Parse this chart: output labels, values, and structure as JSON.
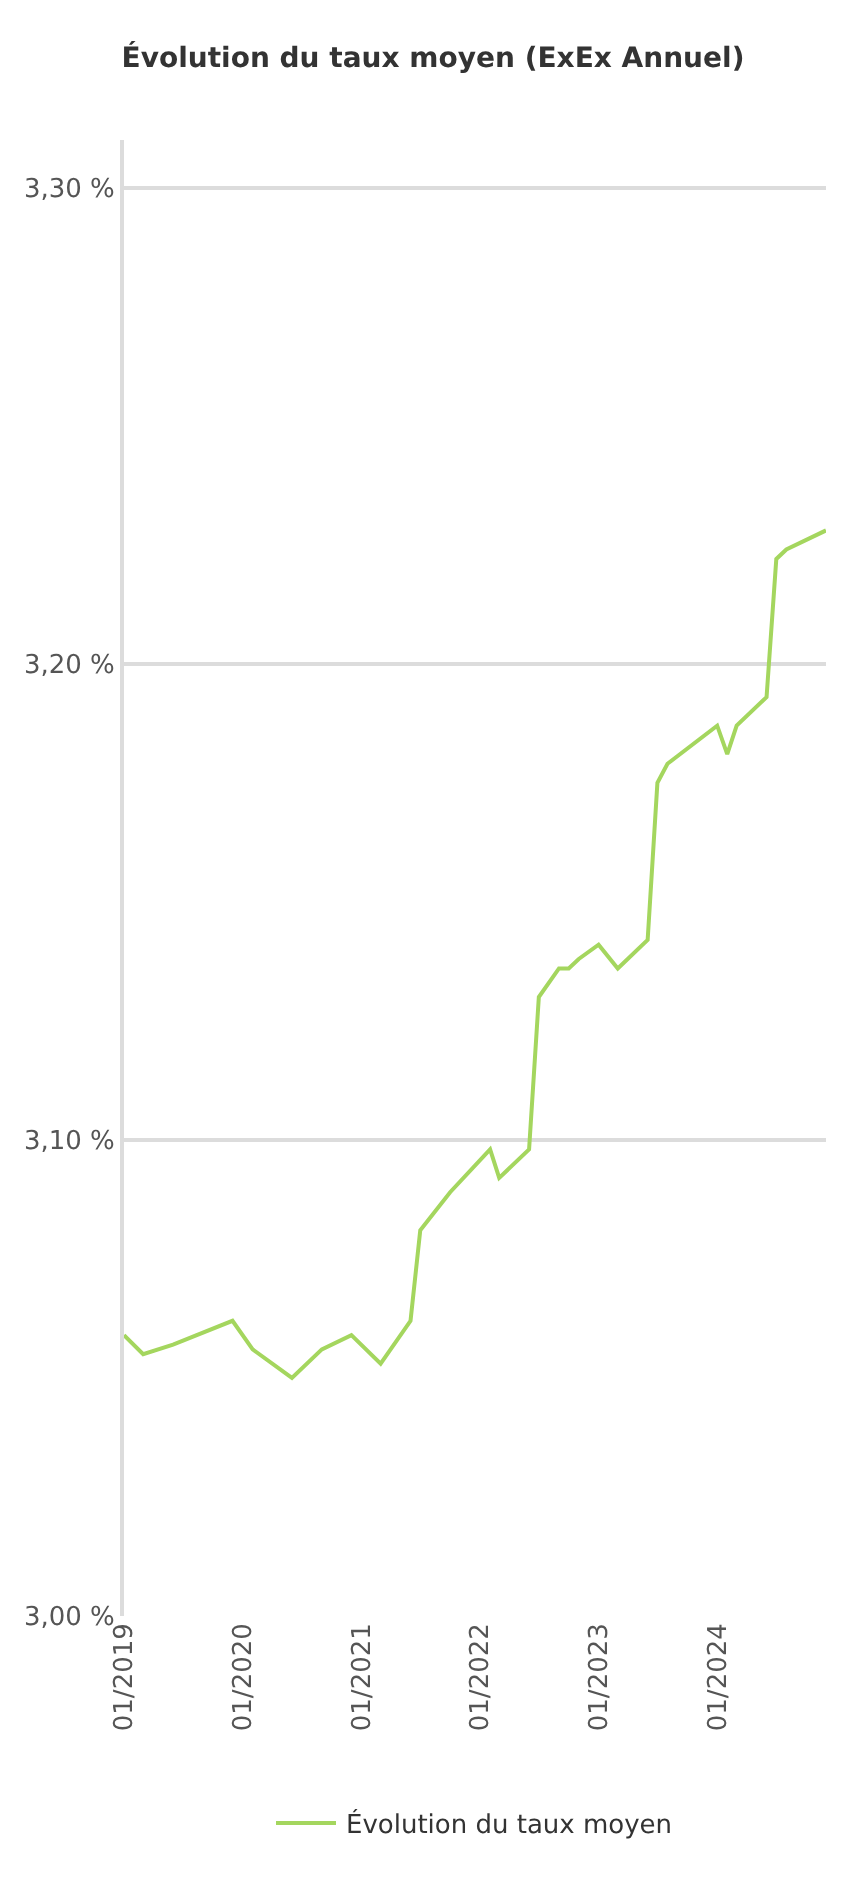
{
  "chart_data": {
    "type": "line",
    "title": "Évolution du taux moyen (ExEx Annuel)",
    "x": [
      "2019-01",
      "2019-03",
      "2019-06",
      "2019-12",
      "2020-02",
      "2020-06",
      "2020-09",
      "2020-12",
      "2021-03",
      "2021-06",
      "2021-07",
      "2021-10",
      "2022-02",
      "2022-03",
      "2022-06",
      "2022-07",
      "2022-09",
      "2022-10",
      "2022-11",
      "2023-01",
      "2023-03",
      "2023-06",
      "2023-07",
      "2023-08",
      "2024-01",
      "2024-02",
      "2024-03",
      "2024-06",
      "2024-07",
      "2024-08",
      "2024-12"
    ],
    "series": [
      {
        "name": "Évolution du taux moyen",
        "color": "#a4d65e",
        "values": [
          3.059,
          3.055,
          3.057,
          3.062,
          3.056,
          3.05,
          3.056,
          3.059,
          3.053,
          3.062,
          3.081,
          3.089,
          3.098,
          3.092,
          3.098,
          3.13,
          3.136,
          3.136,
          3.138,
          3.141,
          3.136,
          3.142,
          3.175,
          3.179,
          3.187,
          3.181,
          3.187,
          3.193,
          3.222,
          3.224,
          3.228
        ]
      }
    ],
    "xlim": [
      "2019-01",
      "2024-12"
    ],
    "xticks": [
      {
        "value": "2019-01",
        "label": "01/2019"
      },
      {
        "value": "2020-01",
        "label": "01/2020"
      },
      {
        "value": "2021-01",
        "label": "01/2021"
      },
      {
        "value": "2022-01",
        "label": "01/2022"
      },
      {
        "value": "2023-01",
        "label": "01/2023"
      },
      {
        "value": "2024-01",
        "label": "01/2024"
      }
    ],
    "ylim": [
      3.0,
      3.31
    ],
    "yticks": [
      {
        "value": 3.0,
        "label": "3,00 %"
      },
      {
        "value": 3.1,
        "label": "3,10 %"
      },
      {
        "value": 3.2,
        "label": "3,20 %"
      },
      {
        "value": 3.3,
        "label": "3,30 %"
      }
    ],
    "grid": "y",
    "legend": "bottom"
  }
}
